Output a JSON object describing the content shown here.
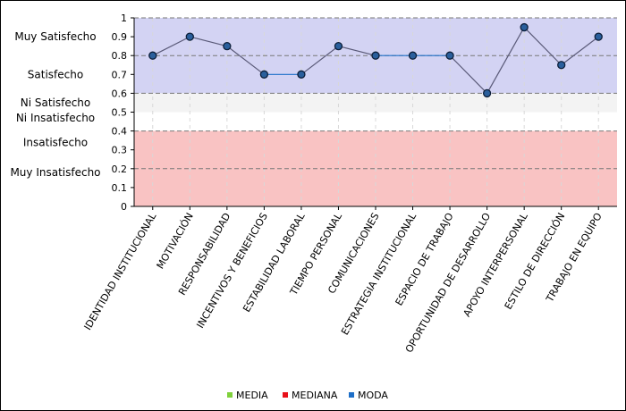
{
  "chart_data": {
    "type": "line",
    "title": "",
    "xlabel": "",
    "ylabel": "",
    "ylim": [
      0,
      1
    ],
    "y_ticks": [
      "0",
      "0.1",
      "0.2",
      "0.3",
      "0.4",
      "0.5",
      "0.6",
      "0.7",
      "0.8",
      "0.9",
      "1"
    ],
    "y_tick_values": [
      0,
      0.1,
      0.2,
      0.3,
      0.4,
      0.5,
      0.6,
      0.7,
      0.8,
      0.9,
      1
    ],
    "categories": [
      "IDENTIDAD INSTITUCIONAL",
      "MOTIVACIÓN",
      "RESPONSABILIDAD",
      "INCENTIVOS Y BENEFICIOS",
      "ESTABILIDAD LABORAL",
      "TIEMPO PERSONAL",
      "COMUNICACIONES",
      "ESTRATEGIA INSTITUCIONAL",
      "ESPACIO DE TRABAJO",
      "OPORTUNIDAD DE DESARROLLO",
      "APOYO INTERPERSONAL",
      "ESTILO DE DIRECCIÓN",
      "TRABAJO EN EQUIPO"
    ],
    "series": [
      {
        "name": "MEDIA",
        "color": "#5a5a78",
        "marker_color": "#2a5f9c",
        "values": [
          0.8,
          0.9,
          0.85,
          0.7,
          0.7,
          0.85,
          0.8,
          0.8,
          0.8,
          0.6,
          0.95,
          0.75,
          0.9
        ]
      }
    ],
    "legend": [
      {
        "label": "MEDIA",
        "color": "#7fd13b"
      },
      {
        "label": "MEDIANA",
        "color": "#e8101a"
      },
      {
        "label": "MODA",
        "color": "#1e6fc8"
      }
    ],
    "bands": [
      {
        "from": 0.6,
        "to": 1.0,
        "color": "#d3d3f3"
      },
      {
        "from": 0.5,
        "to": 0.6,
        "color": "#f3f3f3"
      },
      {
        "from": 0.0,
        "to": 0.4,
        "color": "#f9c3c3"
      }
    ],
    "band_labels": [
      {
        "text": "Muy Satisfecho",
        "at": 0.9
      },
      {
        "text": "Satisfecho",
        "at": 0.7
      },
      {
        "text": "Ni Satisfecho",
        "at": 0.55
      },
      {
        "text": "Ni Insatisfecho",
        "at": 0.47
      },
      {
        "text": "Insatisfecho",
        "at": 0.34
      },
      {
        "text": "Muy Insatisfecho",
        "at": 0.18
      }
    ],
    "dashed_lines": [
      0.2,
      0.4,
      0.6,
      0.8,
      1.0
    ],
    "grid": "vertical dotted",
    "legend_position": "bottom-center"
  }
}
